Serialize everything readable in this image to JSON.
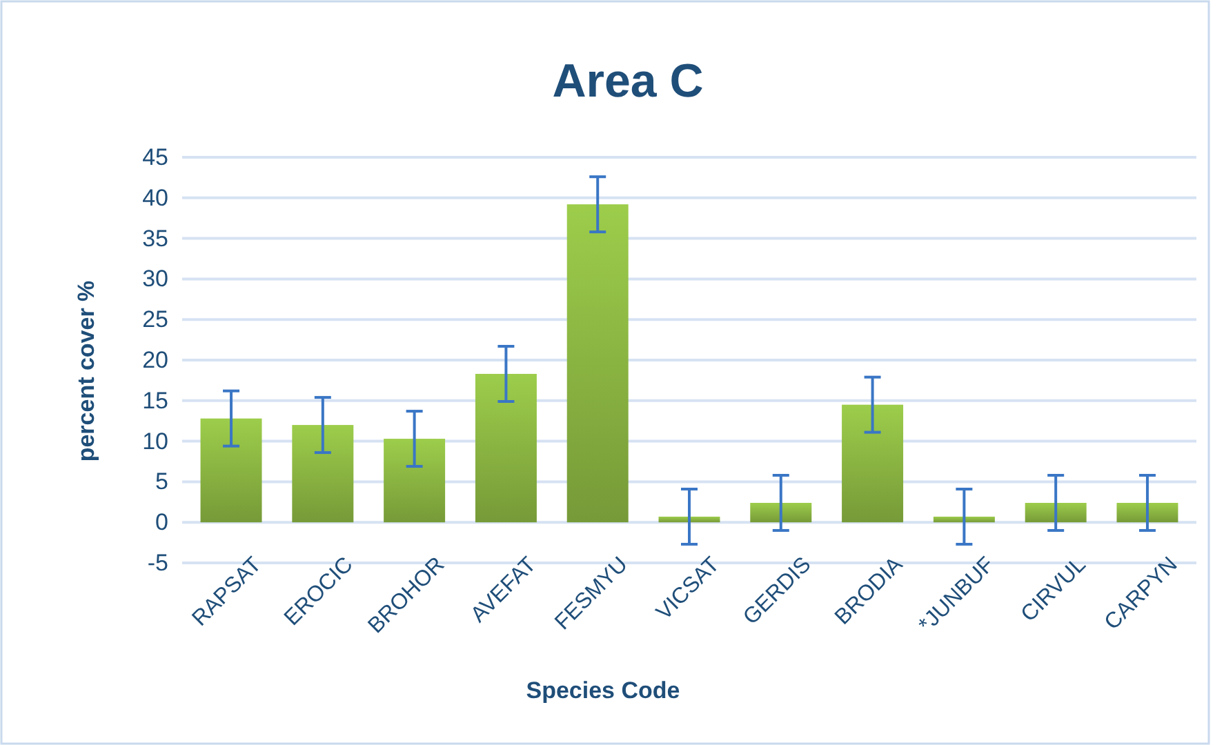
{
  "chart_data": {
    "type": "bar",
    "title": "Area C",
    "xlabel": "Species Code",
    "ylabel": "percent cover %",
    "categories": [
      "RAPSAT",
      "EROCIC",
      "BROHOR",
      "AVEFAT",
      "FESMYU",
      "VICSAT",
      "GERDIS",
      "BRODIA",
      "*JUNBUF",
      "CIRVUL",
      "CARPYN"
    ],
    "values": [
      12.8,
      12.0,
      10.3,
      18.3,
      39.2,
      0.7,
      2.4,
      14.5,
      0.7,
      2.4,
      2.4
    ],
    "errors": [
      3.4,
      3.4,
      3.4,
      3.4,
      3.4,
      3.4,
      3.4,
      3.4,
      3.4,
      3.4,
      3.4
    ],
    "color": "#8db843",
    "ylim": [
      -5,
      45
    ],
    "yticks": [
      -5,
      0,
      5,
      10,
      15,
      20,
      25,
      30,
      35,
      40,
      45
    ],
    "grid": "y"
  }
}
